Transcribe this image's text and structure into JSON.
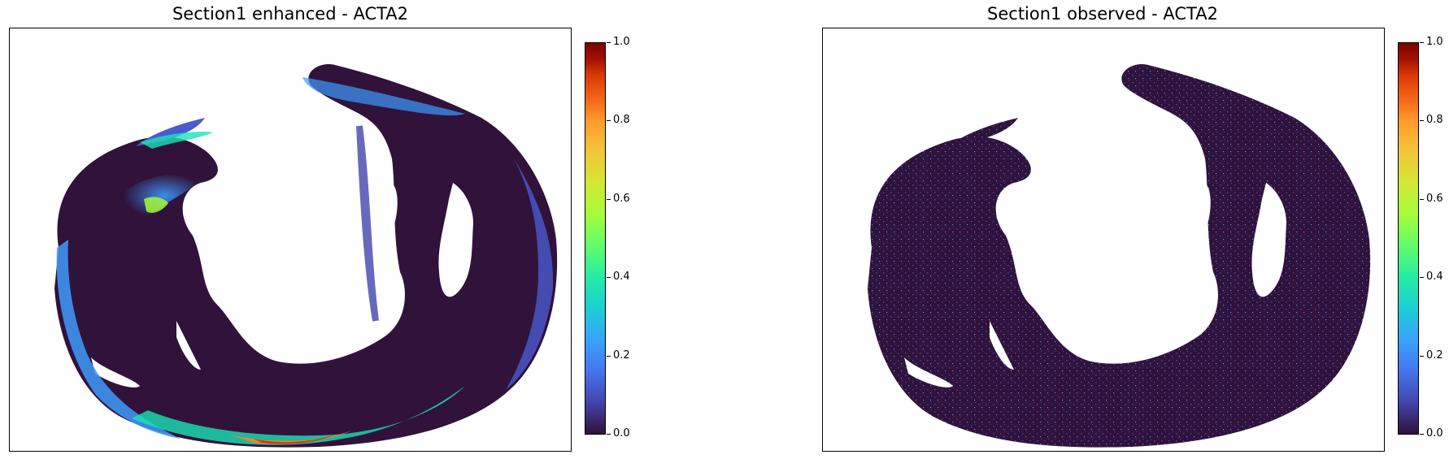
{
  "panels": [
    {
      "title": "Section1 enhanced - ACTA2",
      "colorbar": {
        "ticks": [
          "1.0",
          "0.8",
          "0.6",
          "0.4",
          "0.2",
          "0.0"
        ],
        "colormap": "turbo"
      }
    },
    {
      "title": "Section1 observed - ACTA2",
      "colorbar": {
        "ticks": [
          "1.0",
          "0.8",
          "0.6",
          "0.4",
          "0.2",
          "0.0"
        ],
        "colormap": "turbo"
      }
    }
  ],
  "colors": {
    "background_tissue": "#30123b",
    "low": "#4145ab",
    "mid_blue": "#3e9bfe",
    "cyan": "#1ae4b6",
    "green_yellow": "#a2fc3c",
    "orange": "#fb8022",
    "high": "#7a0403"
  }
}
